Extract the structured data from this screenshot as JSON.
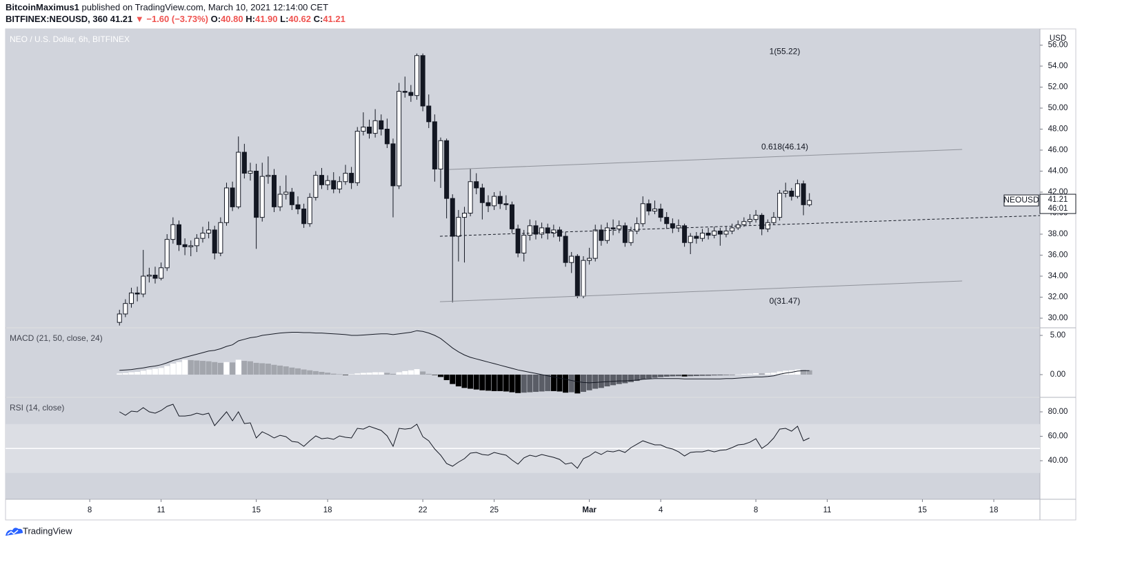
{
  "header": {
    "author": "BitcoinMaximus1",
    "published": "published on TradingView.com, March 10, 2021 12:14:00 CET",
    "symbol": "BITFINEX:NEOUSD, 360",
    "last": "41.21",
    "change": "▼ −1.60 (−3.73%)",
    "ohlc": [
      {
        "label": "O:",
        "value": "40.80"
      },
      {
        "label": "H:",
        "value": "41.90"
      },
      {
        "label": "L:",
        "value": "40.62"
      },
      {
        "label": "C:",
        "value": "41.21"
      }
    ]
  },
  "footer": {
    "brand": "TradingView"
  },
  "chart_data": {
    "type": "candlestick",
    "title": "NEO / U.S. Dollar, 6h, BITFINEX",
    "currency": "USD",
    "up_color": "#ffffff",
    "down_color": "#131722",
    "border_color": "#131722",
    "background": "#d1d4dc",
    "xlim": [
      4.46,
      47.94
    ],
    "xticks": [
      8,
      11,
      15,
      18,
      22,
      25,
      {
        "value": 29,
        "label": "Mar"
      },
      {
        "value": 32,
        "label": "4"
      },
      {
        "value": 36,
        "label": "8"
      },
      {
        "value": 39,
        "label": "11"
      },
      {
        "value": 43,
        "label": "15"
      },
      {
        "value": 46,
        "label": "18"
      }
    ],
    "ylim": [
      29.15,
      57.54
    ],
    "yticks": [
      {
        "value": 30,
        "label": "30.00"
      },
      {
        "value": 32,
        "label": "32.00"
      },
      {
        "value": 34,
        "label": "34.00"
      },
      {
        "value": 36,
        "label": "36.00"
      },
      {
        "value": 38,
        "label": "38.00"
      },
      {
        "value": 40,
        "label": "40.00"
      },
      {
        "value": 42,
        "label": "42.00"
      },
      {
        "value": 44,
        "label": "44.00"
      },
      {
        "value": 46,
        "label": "46.00"
      },
      {
        "value": 48,
        "label": "48.00"
      },
      {
        "value": 50,
        "label": "50.00"
      },
      {
        "value": 52,
        "label": "52.00"
      },
      {
        "value": 54,
        "label": "54.00"
      },
      {
        "value": 56,
        "label": "56.00"
      }
    ],
    "x": [
      9.25,
      9.5,
      9.75,
      10,
      10.25,
      10.5,
      10.75,
      11,
      11.25,
      11.5,
      11.75,
      12,
      12.25,
      12.5,
      12.75,
      13,
      13.25,
      13.5,
      13.75,
      14,
      14.25,
      14.5,
      14.75,
      15,
      15.25,
      15.5,
      15.75,
      16,
      16.25,
      16.5,
      16.75,
      17,
      17.25,
      17.5,
      17.75,
      18,
      18.25,
      18.5,
      18.75,
      19,
      19.25,
      19.5,
      19.75,
      20,
      20.25,
      20.5,
      20.75,
      21,
      21.25,
      21.5,
      21.75,
      22,
      22.25,
      22.5,
      22.75,
      23,
      23.25,
      23.5,
      23.75,
      24,
      24.25,
      24.5,
      24.75,
      25,
      25.25,
      25.5,
      25.75,
      26,
      26.25,
      26.5,
      26.75,
      27,
      27.25,
      27.5,
      27.75,
      28,
      28.25,
      28.5,
      28.75,
      29,
      29.25,
      29.5,
      29.75,
      30,
      30.25,
      30.5,
      30.75,
      31,
      31.25,
      31.5,
      31.75,
      32,
      32.25,
      32.5,
      32.75,
      33,
      33.25,
      33.5,
      33.75,
      34,
      34.25,
      34.5,
      34.75,
      35,
      35.25,
      35.5,
      35.75,
      36,
      36.25,
      36.5,
      36.75,
      37,
      37.25,
      37.5,
      37.75,
      38,
      38.25
    ],
    "candles": [
      [
        29.6,
        30.8,
        29.3,
        30.4
      ],
      [
        30.4,
        31.8,
        30.1,
        31.4
      ],
      [
        31.4,
        32.9,
        31.0,
        32.4
      ],
      [
        32.4,
        33.0,
        31.6,
        32.3
      ],
      [
        32.3,
        36.5,
        32.0,
        34.0
      ],
      [
        34.0,
        34.8,
        33.4,
        34.1
      ],
      [
        34.1,
        34.9,
        33.3,
        33.8
      ],
      [
        33.8,
        35.3,
        33.6,
        34.8
      ],
      [
        34.8,
        38.0,
        34.5,
        37.5
      ],
      [
        37.5,
        39.6,
        37.1,
        38.9
      ],
      [
        38.9,
        39.3,
        36.4,
        37.0
      ],
      [
        37.0,
        37.6,
        36.0,
        36.8
      ],
      [
        36.8,
        37.4,
        35.9,
        36.9
      ],
      [
        36.9,
        38.0,
        36.3,
        37.6
      ],
      [
        37.6,
        38.7,
        37.2,
        38.1
      ],
      [
        38.1,
        39.2,
        37.6,
        38.4
      ],
      [
        38.4,
        38.8,
        35.6,
        36.2
      ],
      [
        36.2,
        39.6,
        35.9,
        39.1
      ],
      [
        39.1,
        42.9,
        38.8,
        42.4
      ],
      [
        42.4,
        43.0,
        40.2,
        40.6
      ],
      [
        40.6,
        47.3,
        40.4,
        45.8
      ],
      [
        45.8,
        46.6,
        43.3,
        43.8
      ],
      [
        43.8,
        44.8,
        43.1,
        44.0
      ],
      [
        44.0,
        44.7,
        36.6,
        39.6
      ],
      [
        39.6,
        44.8,
        39.2,
        43.5
      ],
      [
        43.5,
        45.4,
        42.8,
        43.6
      ],
      [
        43.6,
        44.2,
        40.1,
        40.6
      ],
      [
        40.6,
        42.6,
        40.2,
        41.8
      ],
      [
        41.8,
        43.6,
        41.3,
        42.0
      ],
      [
        42.0,
        42.4,
        40.3,
        40.8
      ],
      [
        40.8,
        41.6,
        39.9,
        40.4
      ],
      [
        40.4,
        40.9,
        38.6,
        39.0
      ],
      [
        39.0,
        41.9,
        38.7,
        41.5
      ],
      [
        41.5,
        44.0,
        41.2,
        43.6
      ],
      [
        43.6,
        44.3,
        42.3,
        42.7
      ],
      [
        42.7,
        43.6,
        42.2,
        43.1
      ],
      [
        43.1,
        43.9,
        41.9,
        42.3
      ],
      [
        42.3,
        43.5,
        41.9,
        43.0
      ],
      [
        43.0,
        44.6,
        42.7,
        43.8
      ],
      [
        43.8,
        44.4,
        42.3,
        42.9
      ],
      [
        42.9,
        48.2,
        42.6,
        47.8
      ],
      [
        47.8,
        49.6,
        47.4,
        48.2
      ],
      [
        48.2,
        48.9,
        47.1,
        47.6
      ],
      [
        47.6,
        49.9,
        47.2,
        48.8
      ],
      [
        48.8,
        49.4,
        47.4,
        48.0
      ],
      [
        48.0,
        49.0,
        46.2,
        46.6
      ],
      [
        46.6,
        47.1,
        39.6,
        42.6
      ],
      [
        42.6,
        52.4,
        42.3,
        51.6
      ],
      [
        51.6,
        53.0,
        51.0,
        51.5
      ],
      [
        51.5,
        52.2,
        50.6,
        51.2
      ],
      [
        51.2,
        55.2,
        50.8,
        55.0
      ],
      [
        55.0,
        55.2,
        49.7,
        50.2
      ],
      [
        50.2,
        51.3,
        48.1,
        48.7
      ],
      [
        48.7,
        49.4,
        43.0,
        44.2
      ],
      [
        44.2,
        47.2,
        42.4,
        46.9
      ],
      [
        46.9,
        47.1,
        39.5,
        41.4
      ],
      [
        41.4,
        41.8,
        31.5,
        37.8
      ],
      [
        37.8,
        40.3,
        35.4,
        39.6
      ],
      [
        39.6,
        40.6,
        35.3,
        40.0
      ],
      [
        40.0,
        44.2,
        39.7,
        43.0
      ],
      [
        43.0,
        43.8,
        41.8,
        42.4
      ],
      [
        42.4,
        42.8,
        39.4,
        41.0
      ],
      [
        41.0,
        41.7,
        40.1,
        40.7
      ],
      [
        40.7,
        42.0,
        40.3,
        41.6
      ],
      [
        41.6,
        42.1,
        40.4,
        40.9
      ],
      [
        40.9,
        41.7,
        40.3,
        40.8
      ],
      [
        40.8,
        41.1,
        38.1,
        38.5
      ],
      [
        38.5,
        38.9,
        35.8,
        36.2
      ],
      [
        36.2,
        38.4,
        35.4,
        37.9
      ],
      [
        37.9,
        39.4,
        37.4,
        38.8
      ],
      [
        38.8,
        39.3,
        37.5,
        38.0
      ],
      [
        38.0,
        39.1,
        37.6,
        38.6
      ],
      [
        38.6,
        39.0,
        37.5,
        38.1
      ],
      [
        38.1,
        38.9,
        37.7,
        38.4
      ],
      [
        38.4,
        38.7,
        37.3,
        37.8
      ],
      [
        37.8,
        38.2,
        34.9,
        35.3
      ],
      [
        35.3,
        36.3,
        34.3,
        35.9
      ],
      [
        35.9,
        36.1,
        31.9,
        32.1
      ],
      [
        32.1,
        35.9,
        31.9,
        35.5
      ],
      [
        35.5,
        36.7,
        35.1,
        35.7
      ],
      [
        35.7,
        38.9,
        35.4,
        38.4
      ],
      [
        38.4,
        38.9,
        36.9,
        37.4
      ],
      [
        37.4,
        39.1,
        37.1,
        38.6
      ],
      [
        38.6,
        39.4,
        37.9,
        38.5
      ],
      [
        38.5,
        39.3,
        38.1,
        38.8
      ],
      [
        38.8,
        39.1,
        36.8,
        37.2
      ],
      [
        37.2,
        38.7,
        36.9,
        38.3
      ],
      [
        38.3,
        39.6,
        38.0,
        39.0
      ],
      [
        39.0,
        41.6,
        38.7,
        40.9
      ],
      [
        40.9,
        41.3,
        39.8,
        40.2
      ],
      [
        40.2,
        41.2,
        39.9,
        40.4
      ],
      [
        40.4,
        40.9,
        39.2,
        39.6
      ],
      [
        39.6,
        40.1,
        38.5,
        39.0
      ],
      [
        39.0,
        39.5,
        38.1,
        38.6
      ],
      [
        38.6,
        39.4,
        38.2,
        38.8
      ],
      [
        38.8,
        39.0,
        36.8,
        37.2
      ],
      [
        37.2,
        38.1,
        36.1,
        37.8
      ],
      [
        37.8,
        38.2,
        37.1,
        37.6
      ],
      [
        37.6,
        38.5,
        37.3,
        38.1
      ],
      [
        38.1,
        38.6,
        37.5,
        37.9
      ],
      [
        37.9,
        38.7,
        37.6,
        38.3
      ],
      [
        38.3,
        38.6,
        36.9,
        38.0
      ],
      [
        38.0,
        38.7,
        37.7,
        38.3
      ],
      [
        38.3,
        39.0,
        38.0,
        38.6
      ],
      [
        38.6,
        39.3,
        38.4,
        38.9
      ],
      [
        38.9,
        39.6,
        38.7,
        39.2
      ],
      [
        39.2,
        39.9,
        38.9,
        39.4
      ],
      [
        39.4,
        40.3,
        39.1,
        39.8
      ],
      [
        39.8,
        40.0,
        37.9,
        38.5
      ],
      [
        38.5,
        39.4,
        38.2,
        39.1
      ],
      [
        39.1,
        40.1,
        38.9,
        39.6
      ],
      [
        39.6,
        42.2,
        39.3,
        41.9
      ],
      [
        41.9,
        42.9,
        41.5,
        42.1
      ],
      [
        42.1,
        42.4,
        41.2,
        41.6
      ],
      [
        41.6,
        43.2,
        41.4,
        42.8
      ],
      [
        42.8,
        43.1,
        39.8,
        40.8
      ],
      [
        40.8,
        41.9,
        40.62,
        41.21
      ]
    ],
    "drawings": [
      {
        "x": [
          23.1,
          44.67
        ],
        "y": [
          44.16,
          46.07
        ],
        "color": "#8f929a",
        "dashed": false
      },
      {
        "x": [
          22.72,
          44.67
        ],
        "y": [
          31.57,
          33.54
        ],
        "color": "#8f929a",
        "dashed": false
      },
      {
        "x": [
          22.72,
          47.94
        ],
        "y": [
          37.8,
          39.77
        ],
        "color": "#131722",
        "dashed": true
      }
    ],
    "fib_levels": [
      {
        "label": "1(55.22)",
        "value": 55.22
      },
      {
        "label": "0.618(46.14)",
        "value": 46.14
      },
      {
        "label": "0(31.47)",
        "value": 31.47
      }
    ],
    "price_label": {
      "symbol": "NEOUSD",
      "value": "41.21",
      "countdown": "46:01"
    },
    "macd": {
      "title": "MACD (21, 50, close, 24)",
      "ylim": [
        -2.81,
        5.88
      ],
      "yticks": [
        {
          "value": 0,
          "label": "0.00"
        },
        {
          "value": 5,
          "label": "5.00"
        }
      ],
      "line_color": "#131722",
      "hist_colors": {
        "pos_up": "#ffffff",
        "pos_down": "#a3a6ad",
        "neg_down": "#000000",
        "neg_up": "#5a5d66"
      },
      "histogram": [
        0.15,
        0.2,
        0.3,
        0.35,
        0.5,
        0.65,
        0.75,
        0.85,
        1.1,
        1.4,
        1.6,
        1.9,
        1.85,
        1.8,
        1.75,
        1.7,
        1.6,
        1.5,
        1.6,
        1.55,
        1.9,
        1.75,
        1.7,
        1.5,
        1.45,
        1.4,
        1.25,
        1.15,
        1.05,
        0.9,
        0.8,
        0.65,
        0.55,
        0.45,
        0.35,
        0.25,
        0.12,
        0.05,
        -0.05,
        0.05,
        0.15,
        0.22,
        0.25,
        0.3,
        0.3,
        0.22,
        0.1,
        0.3,
        0.45,
        0.55,
        0.7,
        0.4,
        0.1,
        -0.05,
        -0.3,
        -0.7,
        -1.2,
        -1.5,
        -1.7,
        -1.8,
        -1.9,
        -2.0,
        -2.05,
        -2.1,
        -2.1,
        -2.15,
        -2.25,
        -2.35,
        -2.3,
        -2.25,
        -2.2,
        -2.15,
        -2.1,
        -2.1,
        -2.15,
        -2.3,
        -2.25,
        -2.4,
        -2.2,
        -2.0,
        -1.8,
        -1.7,
        -1.5,
        -1.35,
        -1.2,
        -1.1,
        -0.95,
        -0.8,
        -0.6,
        -0.5,
        -0.4,
        -0.32,
        -0.26,
        -0.22,
        -0.2,
        -0.24,
        -0.2,
        -0.18,
        -0.15,
        -0.14,
        -0.1,
        -0.09,
        -0.06,
        -0.03,
        0.02,
        0.08,
        0.12,
        0.18,
        0.15,
        0.2,
        0.25,
        0.4,
        0.5,
        0.55,
        0.65,
        0.6,
        0.55
      ],
      "line": [
        0.55,
        0.6,
        0.65,
        0.75,
        0.85,
        1.0,
        1.1,
        1.25,
        1.5,
        1.8,
        2.0,
        2.2,
        2.4,
        2.6,
        2.8,
        3.0,
        3.1,
        3.3,
        3.6,
        3.8,
        4.3,
        4.5,
        4.7,
        4.8,
        5.0,
        5.1,
        5.2,
        5.3,
        5.35,
        5.4,
        5.4,
        5.35,
        5.35,
        5.3,
        5.3,
        5.25,
        5.2,
        5.15,
        5.1,
        5.0,
        5.0,
        5.05,
        5.1,
        5.15,
        5.2,
        5.2,
        5.1,
        5.2,
        5.3,
        5.4,
        5.6,
        5.5,
        5.3,
        5.0,
        4.6,
        4.0,
        3.4,
        2.9,
        2.5,
        2.2,
        2.0,
        1.8,
        1.6,
        1.4,
        1.2,
        1.0,
        0.8,
        0.6,
        0.45,
        0.3,
        0.15,
        0.0,
        -0.15,
        -0.3,
        -0.45,
        -0.6,
        -0.75,
        -0.9,
        -1.0,
        -1.05,
        -1.0,
        -0.95,
        -0.9,
        -0.85,
        -0.8,
        -0.8,
        -0.75,
        -0.7,
        -0.6,
        -0.55,
        -0.5,
        -0.5,
        -0.5,
        -0.5,
        -0.5,
        -0.55,
        -0.55,
        -0.55,
        -0.55,
        -0.55,
        -0.55,
        -0.55,
        -0.5,
        -0.5,
        -0.45,
        -0.4,
        -0.35,
        -0.3,
        -0.3,
        -0.25,
        -0.15,
        0.05,
        0.2,
        0.3,
        0.45,
        0.5,
        0.5
      ]
    },
    "rsi": {
      "title": "RSI (14, close)",
      "ylim": [
        8.45,
        91.3
      ],
      "yticks": [
        {
          "value": 40,
          "label": "40.00"
        },
        {
          "value": 60,
          "label": "60.00"
        },
        {
          "value": 80,
          "label": "80.00"
        }
      ],
      "band": [
        30,
        70
      ],
      "band_color": "#dcdee4",
      "midline": 50,
      "line_color": "#131722",
      "values": [
        80,
        77.2,
        80.6,
        80,
        83.4,
        80,
        78.9,
        81.1,
        84.5,
        86.2,
        76.6,
        76.6,
        77.2,
        78.9,
        77.7,
        78.9,
        68.7,
        74.4,
        80,
        72.7,
        80,
        70.4,
        71,
        58.6,
        63.7,
        61.4,
        58.6,
        60.8,
        59.7,
        55.8,
        55.2,
        51.8,
        56.3,
        60.3,
        58,
        58.6,
        57.5,
        60.3,
        59.2,
        58.6,
        66.5,
        65.9,
        68.2,
        66.5,
        64.8,
        60.3,
        51.8,
        66.5,
        65.9,
        66.5,
        69.9,
        59.7,
        56.3,
        49.6,
        44.5,
        37.7,
        35.5,
        38.9,
        41.7,
        46.2,
        46.8,
        45.1,
        44.5,
        46.8,
        45.6,
        44.5,
        40.6,
        37.2,
        42.3,
        44.5,
        43.4,
        45.1,
        43.9,
        42.8,
        41.1,
        37.2,
        38.3,
        33.8,
        41.7,
        43.9,
        47.3,
        45.1,
        47.9,
        47.3,
        48.5,
        46.8,
        50.7,
        53.5,
        56.3,
        54.6,
        53,
        53,
        50.7,
        49.6,
        47.3,
        43.9,
        46.8,
        47.3,
        47.3,
        48.5,
        47.3,
        48.5,
        49,
        50.7,
        53,
        53.5,
        55.2,
        58,
        50.1,
        53.5,
        58.6,
        65.9,
        66.5,
        64.2,
        68.2,
        56.3,
        58.6
      ]
    }
  }
}
